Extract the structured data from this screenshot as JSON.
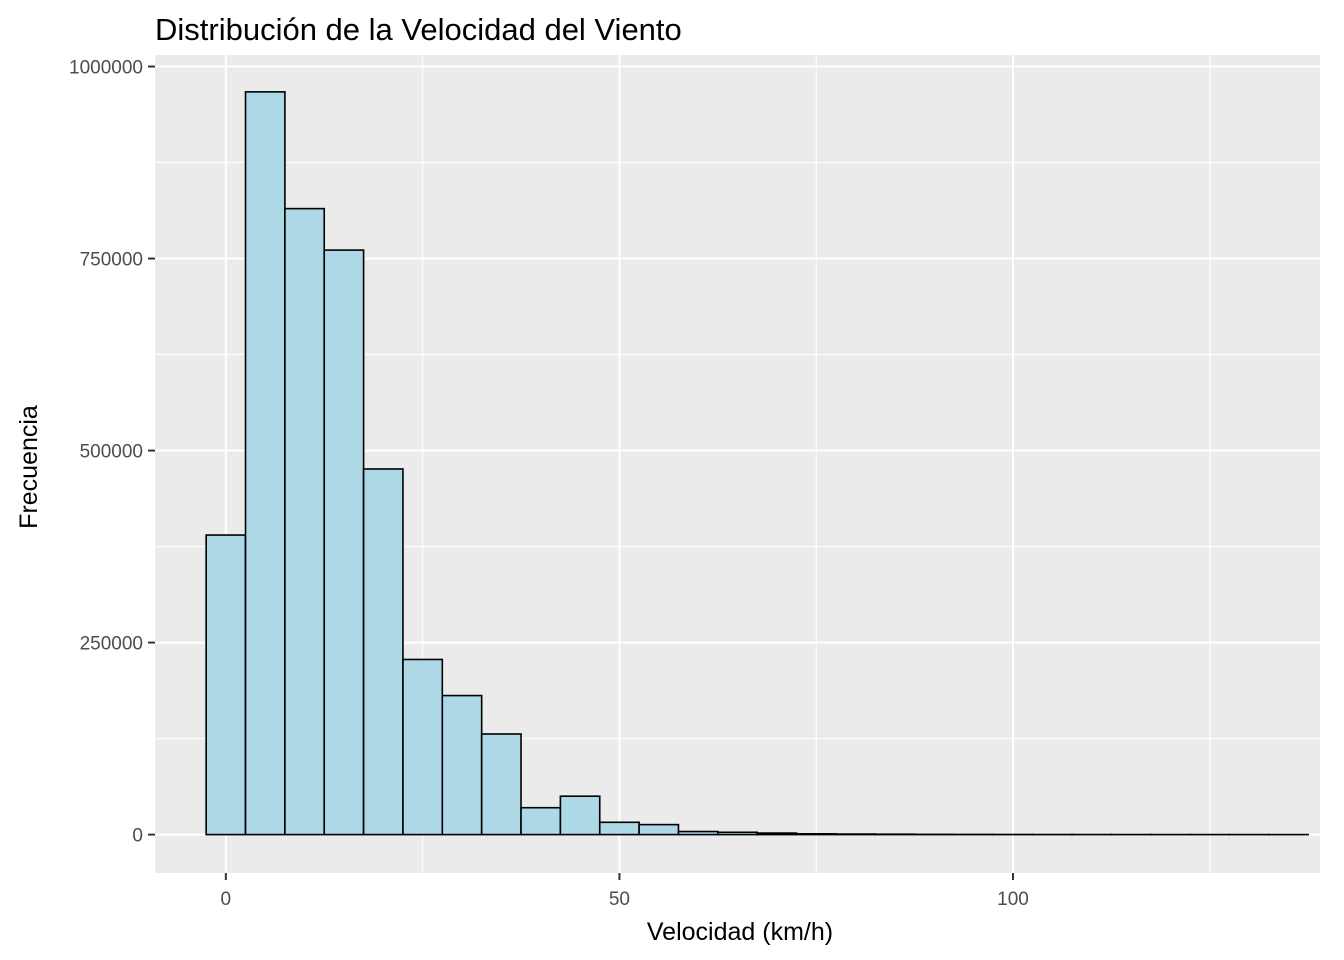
{
  "chart_data": {
    "type": "bar",
    "title": "Distribución de la Velocidad del Viento",
    "xlabel": "Velocidad (km/h)",
    "ylabel": "Frecuencia",
    "xlim": [
      -9.0,
      139.0
    ],
    "ylim": [
      -50000,
      1015000
    ],
    "x_ticks": [
      0,
      50,
      100
    ],
    "x_tick_labels": [
      "0",
      "50",
      "100"
    ],
    "x_minor_ticks": [
      25,
      75,
      125
    ],
    "y_ticks": [
      0,
      250000,
      500000,
      750000,
      1000000
    ],
    "y_tick_labels": [
      "0",
      "250000",
      "500000",
      "750000",
      "1000000"
    ],
    "y_minor_ticks": [
      125000,
      375000,
      625000,
      875000
    ],
    "grid": true,
    "bin_width": 5.0,
    "series": [
      {
        "bin_centers": [
          0,
          5,
          10,
          15,
          20,
          25,
          30,
          35,
          40,
          45,
          50,
          55,
          60,
          65,
          70,
          75,
          80,
          85,
          90,
          95,
          100,
          105,
          110,
          115,
          120,
          125,
          130,
          135
        ],
        "values": [
          390000,
          967000,
          815000,
          761000,
          476000,
          228000,
          181000,
          131000,
          35000,
          50000,
          16000,
          13000,
          4000,
          3000,
          2000,
          1000,
          700,
          500,
          300,
          200,
          150,
          100,
          80,
          60,
          50,
          40,
          30,
          20
        ]
      }
    ],
    "colors": {
      "bar_fill": "#add8e6",
      "bar_stroke": "#000000",
      "panel_bg": "#ebebeb",
      "grid": "#ffffff"
    }
  }
}
